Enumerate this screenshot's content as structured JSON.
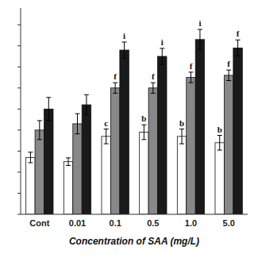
{
  "chart_data": {
    "type": "bar",
    "categories": [
      "Cont",
      "0.01",
      "0.1",
      "0.5",
      "1.0",
      "5.0"
    ],
    "series": [
      {
        "color": "white",
        "values": [
          0.27,
          0.25,
          0.37,
          0.39,
          0.37,
          0.34
        ],
        "errors": [
          0.025,
          0.018,
          0.035,
          0.035,
          0.035,
          0.035
        ],
        "labels": [
          null,
          null,
          "c",
          "b",
          "b",
          "b"
        ]
      },
      {
        "color": "#888888",
        "values": [
          0.4,
          0.43,
          0.6,
          0.6,
          0.65,
          0.66
        ],
        "errors": [
          0.045,
          0.048,
          0.025,
          0.025,
          0.025,
          0.025
        ],
        "labels": [
          null,
          null,
          "f",
          "f",
          "f",
          "f"
        ]
      },
      {
        "color": "#1a1a1a",
        "values": [
          0.5,
          0.52,
          0.78,
          0.75,
          0.83,
          0.79
        ],
        "errors": [
          0.055,
          0.048,
          0.038,
          0.038,
          0.048,
          0.038
        ],
        "labels": [
          null,
          null,
          "i",
          "i",
          "i",
          "f"
        ]
      }
    ],
    "xlabel": "Concentration of SAA (mg/L)",
    "ylim": [
      0.0,
      0.98
    ],
    "yticks": [
      0.0,
      0.1,
      0.2,
      0.3,
      0.4,
      0.5,
      0.6,
      0.7,
      0.8,
      0.9
    ],
    "grid": false,
    "tick_labels": "x"
  }
}
